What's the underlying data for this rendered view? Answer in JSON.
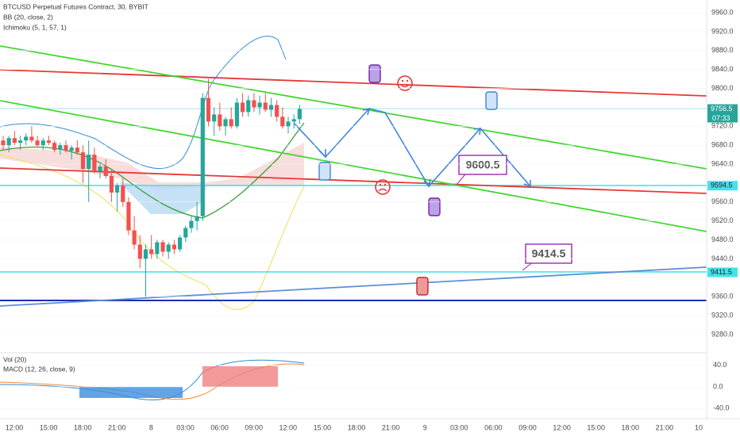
{
  "header": {
    "symbol": "BTCUSD Perpetual Futures Contract, 30, BYBIT",
    "bb": "BB (20, close, 2)",
    "ichimoku": "Ichimoku (5, 1, 57, 1)",
    "vol": "Vol (20)",
    "macd": "MACD (12, 26, close, 9)"
  },
  "price_axis": [
    {
      "value": 9960,
      "label": "9960.0"
    },
    {
      "value": 9920,
      "label": "9920.0"
    },
    {
      "value": 9880,
      "label": "9880.0"
    },
    {
      "value": 9840,
      "label": "9840.0"
    },
    {
      "value": 9800,
      "label": "9800.0"
    },
    {
      "value": 9720,
      "label": "9720.0"
    },
    {
      "value": 9680,
      "label": "9680.0"
    },
    {
      "value": 9640,
      "label": "9640.0"
    },
    {
      "value": 9560,
      "label": "9560.0"
    },
    {
      "value": 9520,
      "label": "9520.0"
    },
    {
      "value": 9480,
      "label": "9480.0"
    },
    {
      "value": 9440,
      "label": "9440.0"
    },
    {
      "value": 9360,
      "label": "9360.0"
    },
    {
      "value": 9320,
      "label": "9320.0"
    },
    {
      "value": 9280,
      "label": "9280.0"
    }
  ],
  "price_tags": [
    {
      "value": 9756.5,
      "label": "9756.5",
      "timer": "07:33"
    },
    {
      "value": 9594.5,
      "label": "9594.5"
    },
    {
      "value": 9411.5,
      "label": "9411.5"
    }
  ],
  "macd_axis": [
    {
      "value": 40,
      "label": "40.0"
    },
    {
      "value": 0,
      "label": "0.0"
    },
    {
      "value": -40,
      "label": "-40.0"
    }
  ],
  "time_axis": [
    "12:00",
    "15:00",
    "18:00",
    "21:00",
    "8",
    "03:00",
    "06:00",
    "09:00",
    "12:00",
    "15:00",
    "18:00",
    "21:00",
    "9",
    "03:00",
    "06:00",
    "09:00",
    "12:00",
    "15:00",
    "18:00",
    "21:00",
    "10"
  ],
  "annotations": [
    "9600.5",
    "9414.5"
  ],
  "candles": [
    [
      9690,
      9700,
      9670,
      9680
    ],
    [
      9680,
      9700,
      9665,
      9695
    ],
    [
      9695,
      9710,
      9680,
      9685
    ],
    [
      9685,
      9700,
      9670,
      9690
    ],
    [
      9690,
      9705,
      9680,
      9698
    ],
    [
      9698,
      9720,
      9685,
      9690
    ],
    [
      9690,
      9700,
      9675,
      9680
    ],
    [
      9680,
      9695,
      9670,
      9690
    ],
    [
      9690,
      9700,
      9680,
      9685
    ],
    [
      9685,
      9690,
      9665,
      9670
    ],
    [
      9670,
      9685,
      9660,
      9680
    ],
    [
      9680,
      9690,
      9665,
      9668
    ],
    [
      9668,
      9680,
      9650,
      9675
    ],
    [
      9675,
      9690,
      9660,
      9665
    ],
    [
      9665,
      9680,
      9600,
      9630
    ],
    [
      9630,
      9690,
      9560,
      9660
    ],
    [
      9660,
      9675,
      9620,
      9625
    ],
    [
      9625,
      9640,
      9610,
      9635
    ],
    [
      9635,
      9650,
      9610,
      9615
    ],
    [
      9615,
      9630,
      9560,
      9580
    ],
    [
      9580,
      9600,
      9540,
      9595
    ],
    [
      9595,
      9610,
      9550,
      9560
    ],
    [
      9560,
      9570,
      9490,
      9500
    ],
    [
      9500,
      9530,
      9460,
      9470
    ],
    [
      9470,
      9490,
      9420,
      9440
    ],
    [
      9440,
      9470,
      9360,
      9460
    ],
    [
      9460,
      9490,
      9440,
      9450
    ],
    [
      9450,
      9480,
      9440,
      9475
    ],
    [
      9475,
      9480,
      9445,
      9455
    ],
    [
      9455,
      9475,
      9440,
      9470
    ],
    [
      9470,
      9480,
      9450,
      9460
    ],
    [
      9460,
      9490,
      9455,
      9485
    ],
    [
      9485,
      9510,
      9475,
      9505
    ],
    [
      9505,
      9530,
      9495,
      9520
    ],
    [
      9520,
      9560,
      9500,
      9530
    ],
    [
      9530,
      9790,
      9520,
      9780
    ],
    [
      9780,
      9820,
      9720,
      9730
    ],
    [
      9730,
      9760,
      9700,
      9745
    ],
    [
      9745,
      9770,
      9710,
      9720
    ],
    [
      9720,
      9740,
      9700,
      9735
    ],
    [
      9735,
      9760,
      9715,
      9720
    ],
    [
      9720,
      9780,
      9715,
      9770
    ],
    [
      9770,
      9790,
      9740,
      9750
    ],
    [
      9750,
      9785,
      9740,
      9775
    ],
    [
      9775,
      9790,
      9750,
      9760
    ],
    [
      9760,
      9785,
      9745,
      9770
    ],
    [
      9770,
      9790,
      9750,
      9755
    ],
    [
      9755,
      9780,
      9740,
      9765
    ],
    [
      9765,
      9775,
      9730,
      9740
    ],
    [
      9740,
      9760,
      9715,
      9720
    ],
    [
      9720,
      9740,
      9705,
      9730
    ],
    [
      9730,
      9745,
      9715,
      9735
    ],
    [
      9735,
      9765,
      9725,
      9756.5
    ]
  ]
}
